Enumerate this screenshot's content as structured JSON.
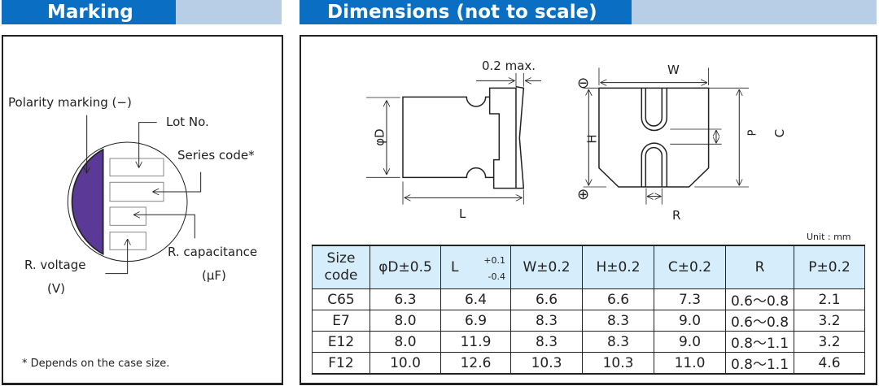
{
  "marking": {
    "title": "Marking",
    "labels": {
      "polarity": "Polarity marking (−)",
      "lot": "Lot No.",
      "series": "Series code*",
      "capacitance": "R. capacitance",
      "capacitance_unit": "(μF)",
      "voltage": "R. voltage",
      "voltage_unit": "(V)"
    },
    "footnote": "* Depends on the case size.",
    "polarity_color": "#5b3a97"
  },
  "dimensions": {
    "title": "Dimensions (not to scale)",
    "drawing_labels": {
      "max": "0.2 max.",
      "phiD": "φD",
      "L": "L",
      "W": "W",
      "H": "H",
      "C": "C",
      "P": "P",
      "R": "R",
      "minus": "⊖",
      "plus": "⊕"
    },
    "unit": "Unit : mm",
    "table": {
      "headers": [
        {
          "main": "Size",
          "sub": "code"
        },
        {
          "main": "φD±0.5"
        },
        {
          "main": "L",
          "tol_plus": "+0.1",
          "tol_minus": "-0.4"
        },
        {
          "main": "W±0.2"
        },
        {
          "main": "H±0.2"
        },
        {
          "main": "C±0.2"
        },
        {
          "main": "R"
        },
        {
          "main": "P±0.2"
        }
      ],
      "rows": [
        [
          "C65",
          "6.3",
          "6.4",
          "6.6",
          "6.6",
          "7.3",
          "0.6～0.8",
          "2.1"
        ],
        [
          "E7",
          "8.0",
          "6.9",
          "8.3",
          "8.3",
          "9.0",
          "0.6～0.8",
          "3.2"
        ],
        [
          "E12",
          "8.0",
          "11.9",
          "8.3",
          "8.3",
          "9.0",
          "0.8～1.1",
          "3.2"
        ],
        [
          "F12",
          "10.0",
          "12.6",
          "10.3",
          "10.3",
          "11.0",
          "0.8～1.1",
          "4.6"
        ]
      ]
    },
    "header_color": "#d6eefc"
  },
  "colors": {
    "header_dark": "#0a6fc2",
    "header_light": "#b8cde6"
  }
}
